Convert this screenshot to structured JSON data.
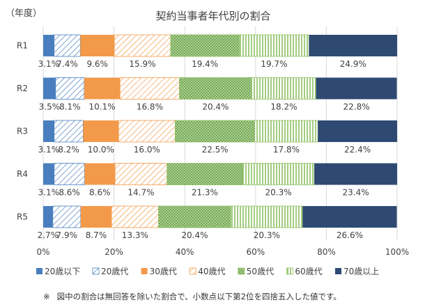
{
  "chart_data": {
    "type": "bar",
    "orientation": "horizontal",
    "stacked": "percent",
    "title": "契約当事者年代別の割合",
    "unit_label": "（年度）",
    "categories": [
      "R1",
      "R2",
      "R3",
      "R4",
      "R5"
    ],
    "x_ticks": [
      "0%",
      "20%",
      "40%",
      "60%",
      "80%",
      "100%"
    ],
    "xlim": [
      0,
      100
    ],
    "grid": true,
    "legend_position": "bottom",
    "series": [
      {
        "name": "20歳以下",
        "color": "#4a7fbf",
        "pattern": "solid",
        "values": [
          3.1,
          3.5,
          3.1,
          3.1,
          2.7
        ],
        "labels": [
          "3.1%",
          "3.5%",
          "3.1%",
          "3.1%",
          "2.7%"
        ]
      },
      {
        "name": "20歳代",
        "color": "#4a7fbf",
        "pattern": "hatch",
        "values": [
          7.4,
          8.1,
          8.2,
          8.6,
          7.9
        ],
        "labels": [
          "7.4%",
          "8.1%",
          "8.2%",
          "8.6%",
          "7.9%"
        ]
      },
      {
        "name": "30歳代",
        "color": "#f39a4a",
        "pattern": "solid",
        "values": [
          9.6,
          10.1,
          10.0,
          8.6,
          8.7
        ],
        "labels": [
          "9.6%",
          "10.1%",
          "10.0%",
          "8.6%",
          "8.7%"
        ]
      },
      {
        "name": "40歳代",
        "color": "#f39a4a",
        "pattern": "hatch",
        "values": [
          15.9,
          16.8,
          16.0,
          14.7,
          13.3
        ],
        "labels": [
          "15.9%",
          "16.8%",
          "16.0%",
          "14.7%",
          "13.3%"
        ]
      },
      {
        "name": "50歳代",
        "color": "#8cc060",
        "pattern": "dots",
        "values": [
          19.4,
          20.4,
          22.5,
          21.3,
          20.4
        ],
        "labels": [
          "19.4%",
          "20.4%",
          "22.5%",
          "21.3%",
          "20.4%"
        ]
      },
      {
        "name": "60歳代",
        "color": "#8cc060",
        "pattern": "vlines",
        "values": [
          19.7,
          18.2,
          17.8,
          20.3,
          20.3
        ],
        "labels": [
          "19.7%",
          "18.2%",
          "17.8%",
          "20.3%",
          "20.3%"
        ]
      },
      {
        "name": "70歳以上",
        "color": "#2e4a72",
        "pattern": "solid",
        "values": [
          24.9,
          22.8,
          22.4,
          23.4,
          26.6
        ],
        "labels": [
          "24.9%",
          "22.8%",
          "22.4%",
          "23.4%",
          "26.6%"
        ]
      }
    ]
  },
  "note": {
    "mark": "※",
    "text": "図中の割合は無回答を除いた割合で、小数点以下第2位を四捨五入した値です。"
  }
}
